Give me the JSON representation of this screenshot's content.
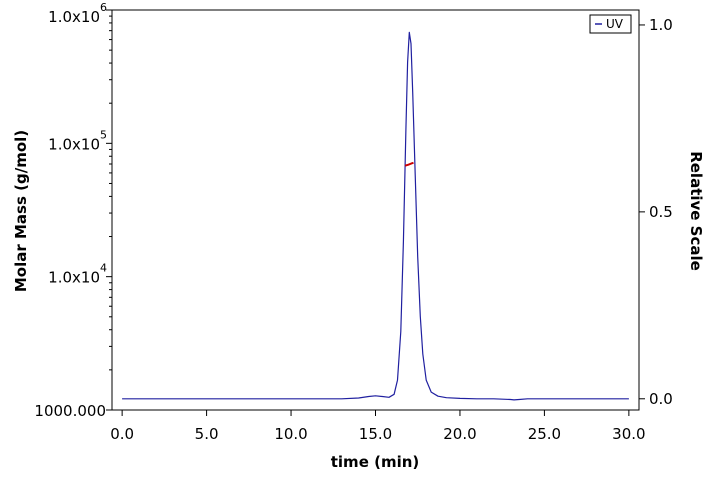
{
  "chart_data": {
    "type": "line",
    "title": "",
    "xlabel": "time (min)",
    "ylabel_left": "Molar Mass (g/mol)",
    "ylabel_right": "Relative Scale",
    "xlim": [
      -0.6,
      30.6
    ],
    "ylim_left": [
      1000,
      1000000
    ],
    "ylim_left_scale": "log",
    "ylim_right": [
      -0.03,
      1.04
    ],
    "x_ticks": [
      {
        "value": 0,
        "label": "0.0"
      },
      {
        "value": 5,
        "label": "5.0"
      },
      {
        "value": 10,
        "label": "10.0"
      },
      {
        "value": 15,
        "label": "15.0"
      },
      {
        "value": 20,
        "label": "20.0"
      },
      {
        "value": 25,
        "label": "25.0"
      },
      {
        "value": 30,
        "label": "30.0"
      }
    ],
    "y_left_ticks": [
      {
        "value": 1000000,
        "base": "1.0x10",
        "exp": "6"
      },
      {
        "value": 100000,
        "base": "1.0x10",
        "exp": "5"
      },
      {
        "value": 10000,
        "base": "1.0x10",
        "exp": "4"
      },
      {
        "value": 1000,
        "base": "1000.000",
        "exp": ""
      }
    ],
    "y_right_ticks": [
      {
        "value": 1.0,
        "label": "1.0"
      },
      {
        "value": 0.5,
        "label": "0.5"
      },
      {
        "value": 0.0,
        "label": "0.0"
      }
    ],
    "grid": false,
    "legend_position": "top-right",
    "series": [
      {
        "name": "UV",
        "axis": "right",
        "color": "#2020a0",
        "x": [
          0,
          5,
          10,
          13,
          14,
          14.6,
          15.0,
          15.4,
          15.8,
          16.1,
          16.3,
          16.5,
          16.65,
          16.8,
          16.9,
          17.0,
          17.1,
          17.2,
          17.35,
          17.5,
          17.65,
          17.8,
          18.0,
          18.3,
          18.7,
          19.2,
          20,
          21,
          22,
          23,
          23.2,
          23.5,
          24,
          26,
          28,
          30
        ],
        "y": [
          0.0,
          0.0,
          0.0,
          0.0,
          0.002,
          0.006,
          0.008,
          0.006,
          0.004,
          0.012,
          0.05,
          0.18,
          0.42,
          0.72,
          0.9,
          0.98,
          0.95,
          0.82,
          0.6,
          0.38,
          0.22,
          0.12,
          0.05,
          0.018,
          0.007,
          0.003,
          0.001,
          0.0,
          0.0,
          -0.002,
          -0.003,
          -0.002,
          0.0,
          0.0,
          0.0,
          0.0
        ]
      },
      {
        "name": "Molar Mass",
        "axis": "left",
        "color": "#cc0000",
        "x": [
          16.75,
          16.85,
          16.95,
          17.05,
          17.15,
          17.25
        ],
        "y": [
          68000,
          68500,
          69200,
          70000,
          70800,
          71500
        ]
      }
    ]
  }
}
